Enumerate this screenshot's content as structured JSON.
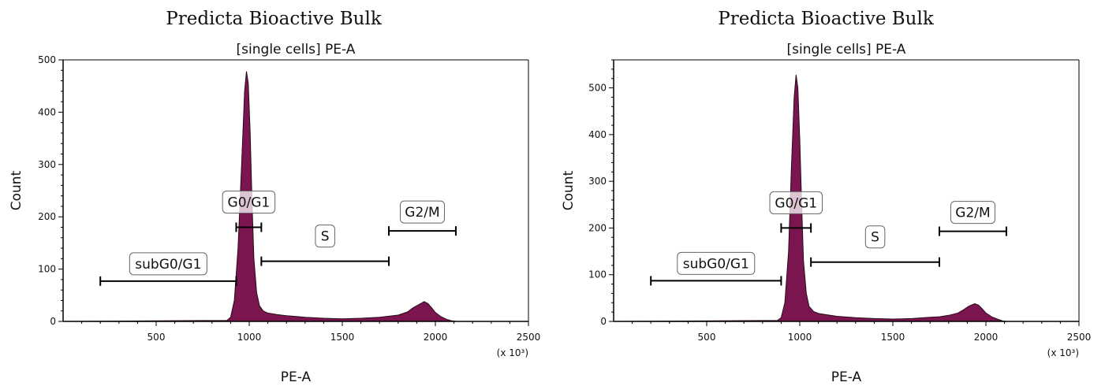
{
  "chart_data": [
    {
      "type": "area",
      "title": "Predicta Bioactive Bulk",
      "subtitle": "[single cells] PE-A",
      "xlabel": "PE-A",
      "ylabel": "Count",
      "x_multiplier_label": "(x 10³)",
      "xlim": [
        0,
        2500
      ],
      "ylim": [
        0,
        500
      ],
      "xticks": [
        500,
        1000,
        1500,
        2000,
        2500
      ],
      "yticks": [
        0,
        100,
        200,
        300,
        400,
        500
      ],
      "fill_color": "#7a1550",
      "series": [
        {
          "x": [
            0,
            880,
            900,
            920,
            940,
            960,
            975,
            985,
            995,
            1005,
            1015,
            1025,
            1040,
            1055,
            1075,
            1100,
            1150,
            1200,
            1300,
            1400,
            1500,
            1600,
            1700,
            1750,
            1800,
            1850,
            1880,
            1910,
            1940,
            1960,
            1980,
            2000,
            2030,
            2060,
            2090,
            2110,
            2500
          ],
          "y": [
            0,
            2,
            8,
            40,
            140,
            310,
            440,
            478,
            455,
            360,
            230,
            120,
            55,
            30,
            20,
            16,
            13,
            11,
            8,
            6,
            5,
            6,
            8,
            10,
            12,
            18,
            26,
            32,
            38,
            34,
            26,
            17,
            9,
            4,
            1,
            0,
            0
          ]
        }
      ],
      "gates": [
        {
          "label": "subG0/G1",
          "x1": 200,
          "x2": 930,
          "y": 77
        },
        {
          "label": "G0/G1",
          "x1": 930,
          "x2": 1065,
          "y": 180
        },
        {
          "label": "S",
          "x1": 1065,
          "x2": 1750,
          "y": 115
        },
        {
          "label": "G2/M",
          "x1": 1750,
          "x2": 2110,
          "y": 173
        }
      ]
    },
    {
      "type": "area",
      "title": "Predicta Bioactive Bulk",
      "subtitle": "[single cells] PE-A",
      "xlabel": "PE-A",
      "ylabel": "Count",
      "x_multiplier_label": "(x 10³)",
      "xlim": [
        0,
        2500
      ],
      "ylim": [
        0,
        560
      ],
      "xticks": [
        500,
        1000,
        1500,
        2000,
        2500
      ],
      "yticks": [
        0,
        100,
        200,
        300,
        400,
        500
      ],
      "fill_color": "#7a1550",
      "series": [
        {
          "x": [
            0,
            880,
            900,
            920,
            940,
            955,
            970,
            980,
            990,
            1000,
            1010,
            1020,
            1035,
            1050,
            1075,
            1100,
            1150,
            1200,
            1300,
            1400,
            1500,
            1600,
            1700,
            1750,
            1800,
            1850,
            1880,
            1910,
            1940,
            1960,
            1980,
            2000,
            2030,
            2060,
            2090,
            2110,
            2500
          ],
          "y": [
            0,
            2,
            8,
            40,
            150,
            330,
            480,
            528,
            500,
            390,
            250,
            130,
            60,
            32,
            21,
            17,
            14,
            11,
            8,
            6,
            5,
            6,
            9,
            10,
            13,
            18,
            25,
            33,
            38,
            35,
            27,
            18,
            10,
            5,
            1,
            0,
            0
          ]
        }
      ],
      "gates": [
        {
          "label": "subG0/G1",
          "x1": 200,
          "x2": 900,
          "y": 87
        },
        {
          "label": "G0/G1",
          "x1": 900,
          "x2": 1060,
          "y": 200
        },
        {
          "label": "S",
          "x1": 1060,
          "x2": 1750,
          "y": 127
        },
        {
          "label": "G2/M",
          "x1": 1750,
          "x2": 2110,
          "y": 193
        }
      ]
    }
  ]
}
